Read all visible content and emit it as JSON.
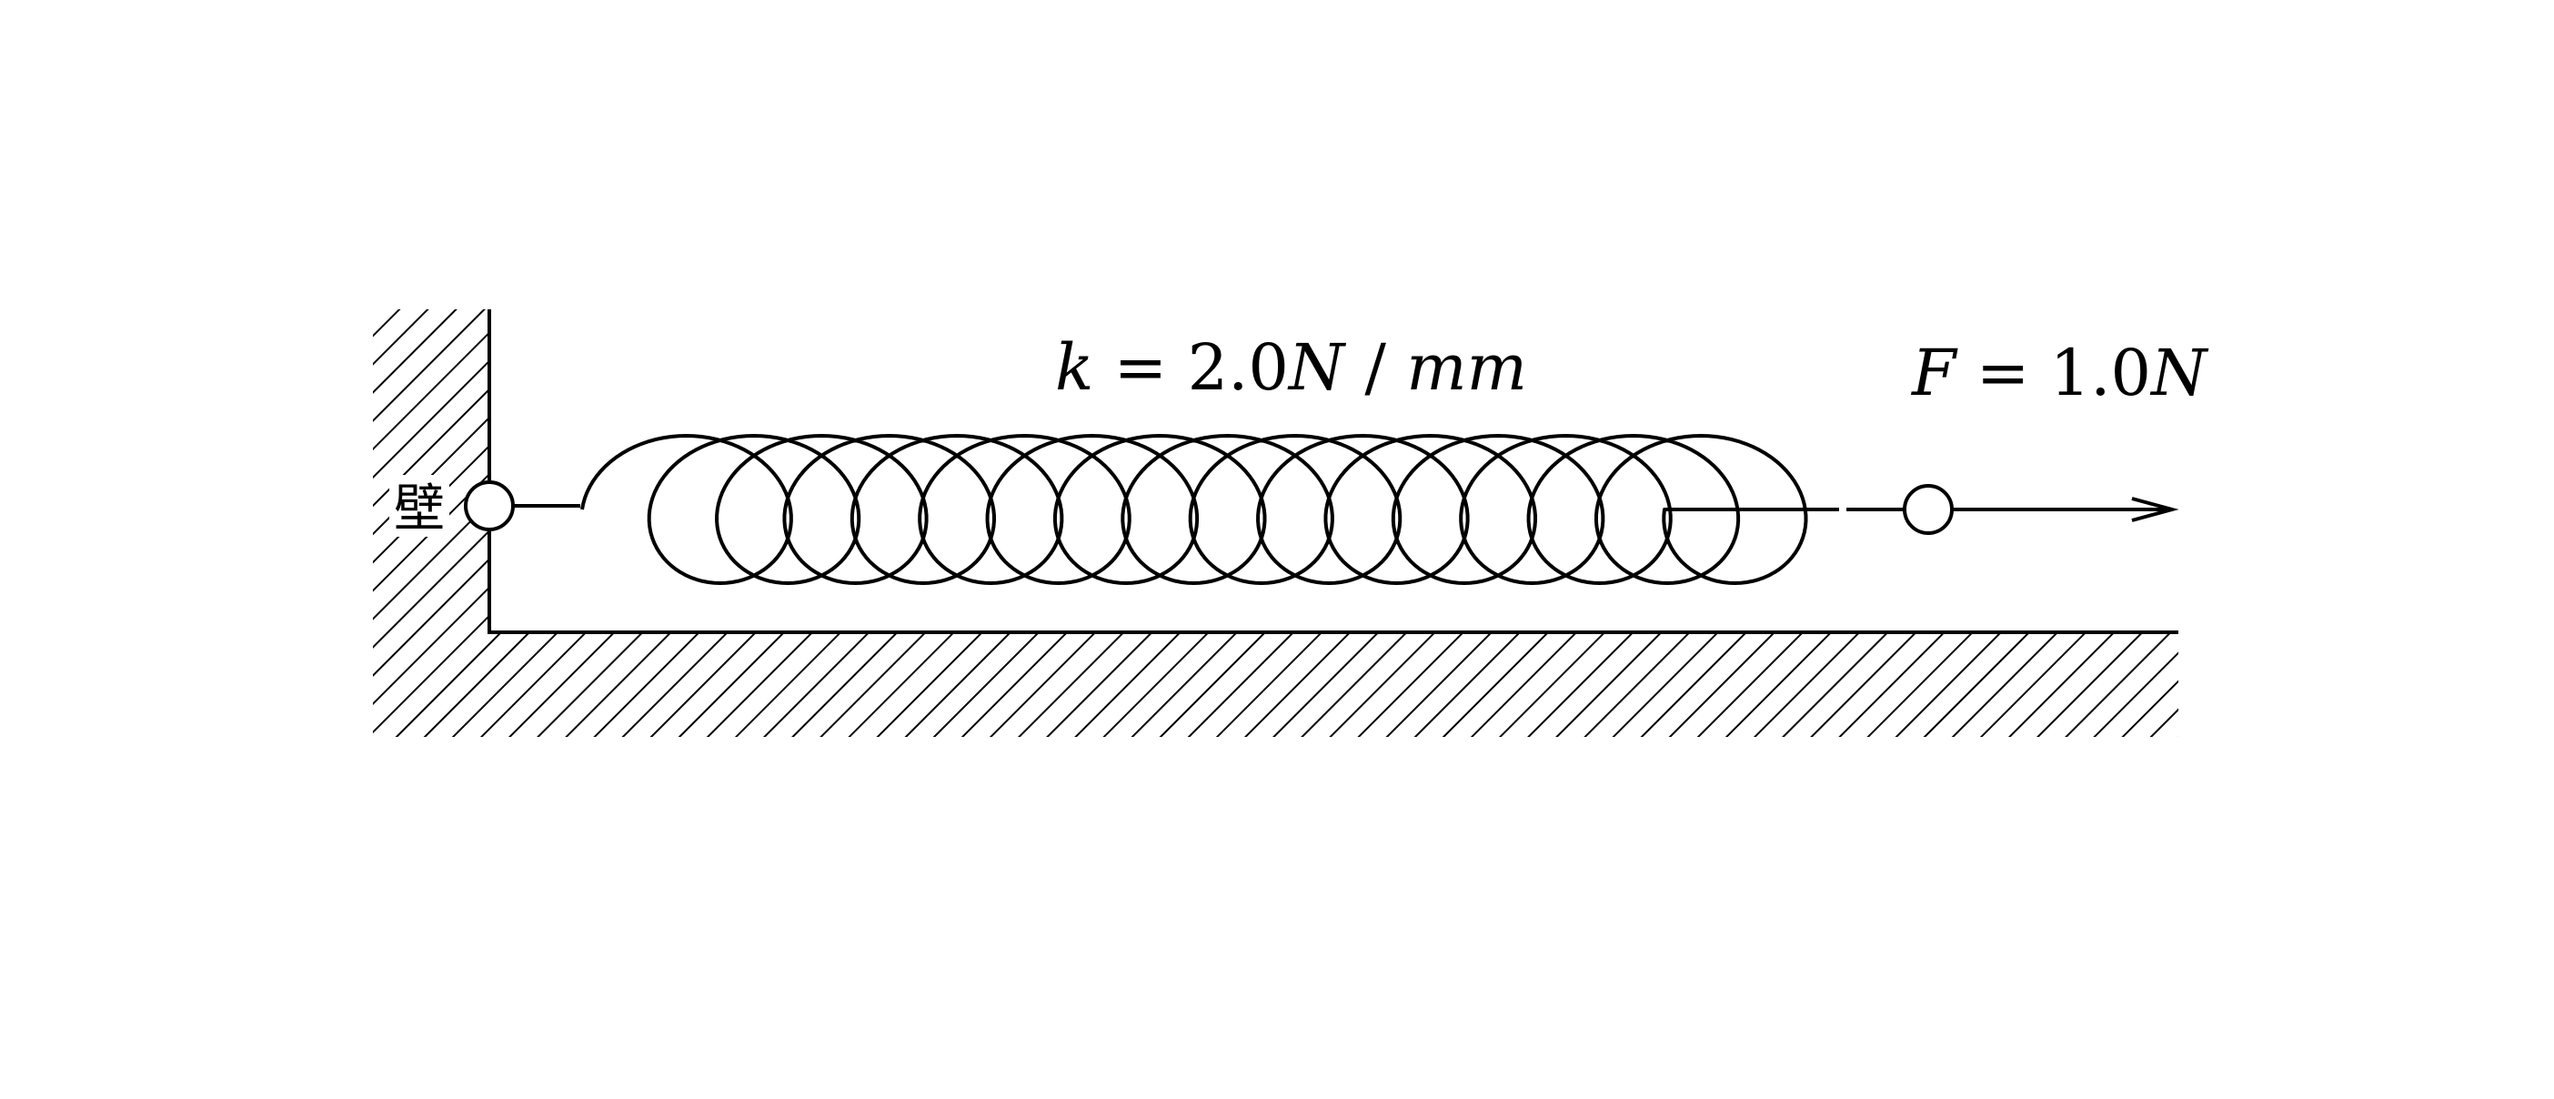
{
  "diagram": {
    "wall_label": "壁",
    "spring_label": {
      "symbol": "k",
      "equals": " = ",
      "value": "2.0",
      "unit_n": "N",
      "slash": " / ",
      "unit_mm": "mm"
    },
    "force_label": {
      "symbol": "F",
      "equals": " = ",
      "value": "1.0",
      "unit_n": "N"
    },
    "spring_coils": 16,
    "colors": {
      "stroke": "#000000",
      "background": "#ffffff"
    }
  }
}
